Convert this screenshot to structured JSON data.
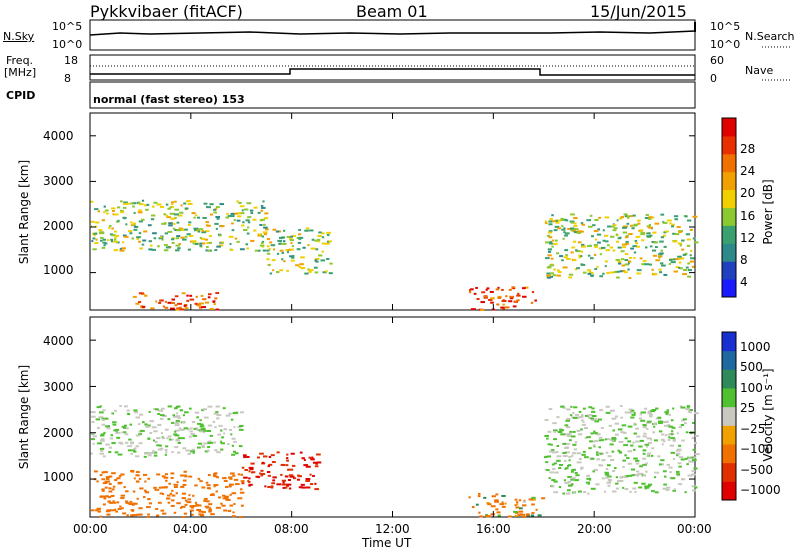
{
  "header": {
    "radar": "Pykkvibaer (fitACF)",
    "beam": "Beam 01",
    "date": "15/Jun/2015"
  },
  "sky_panel": {
    "left_label": "N.Sky",
    "right_label": "N.Search",
    "left_ticks": [
      "10^5",
      "10^0"
    ],
    "right_ticks": [
      "10^5",
      "10^0"
    ]
  },
  "freq_panel": {
    "left_label_line1": "Freq.",
    "left_label_line2": "[MHz]",
    "right_label": "Nave",
    "left_ticks": [
      "18",
      "8"
    ],
    "right_ticks": [
      "60",
      "0"
    ]
  },
  "cpid": {
    "label": "CPID",
    "text": "normal (fast stereo) 153"
  },
  "x_axis": {
    "ticks": [
      "00:00",
      "04:00",
      "08:00",
      "12:00",
      "16:00",
      "20:00",
      "00:00"
    ],
    "label": "Time UT"
  },
  "power_panel": {
    "ylabel": "Slant Range [km]",
    "yticks": [
      "1000",
      "2000",
      "3000",
      "4000"
    ],
    "colorbar_label": "Power [dB]",
    "colorbar_ticks": [
      "4",
      "8",
      "12",
      "16",
      "20",
      "24",
      "28"
    ],
    "colors": [
      "#1a1aff",
      "#2040c0",
      "#2e8a8a",
      "#3aa070",
      "#8bc832",
      "#f0d000",
      "#f0a000",
      "#f07000",
      "#e83000",
      "#e00000"
    ]
  },
  "velocity_panel": {
    "ylabel": "Slant Range [km]",
    "yticks": [
      "1000",
      "2000",
      "3000",
      "4000"
    ],
    "colorbar_label": "Velocity [m s⁻¹]",
    "colorbar_ticks": [
      "1000",
      "500",
      "100",
      "25",
      "−25",
      "−100",
      "−500",
      "−1000"
    ],
    "colors": [
      "#1a2fd0",
      "#1e6aa0",
      "#2e8a5a",
      "#4fc030",
      "#c8c8c0",
      "#f0a000",
      "#f07000",
      "#e03000",
      "#e00000"
    ]
  },
  "chart_data": [
    {
      "type": "heatmap",
      "title": "Power",
      "xlabel": "Time UT",
      "ylabel": "Slant Range [km]",
      "xlim": [
        "00:00",
        "24:00"
      ],
      "ylim": [
        180,
        4500
      ],
      "colorbar": {
        "label": "Power [dB]",
        "range": [
          0,
          30
        ]
      },
      "notable_features": [
        {
          "time_range": [
            "00:00",
            "07:00"
          ],
          "range_km": [
            1500,
            2600
          ],
          "power_db": [
            8,
            20
          ]
        },
        {
          "time_range": [
            "01:30",
            "05:00"
          ],
          "range_km": [
            200,
            600
          ],
          "power_db": [
            18,
            30
          ]
        },
        {
          "time_range": [
            "07:00",
            "09:30"
          ],
          "range_km": [
            1000,
            2000
          ],
          "power_db": [
            8,
            20
          ]
        },
        {
          "time_range": [
            "15:00",
            "17:40"
          ],
          "range_km": [
            200,
            700
          ],
          "power_db": [
            20,
            30
          ]
        },
        {
          "time_range": [
            "18:00",
            "24:00"
          ],
          "range_km": [
            900,
            2300
          ],
          "power_db": [
            8,
            20
          ]
        }
      ]
    },
    {
      "type": "heatmap",
      "title": "Velocity",
      "xlabel": "Time UT",
      "ylabel": "Slant Range [km]",
      "xlim": [
        "00:00",
        "24:00"
      ],
      "ylim": [
        180,
        4500
      ],
      "colorbar": {
        "label": "Velocity [m s⁻¹]",
        "range": [
          -1000,
          1000
        ]
      },
      "notable_features": [
        {
          "time_range": [
            "00:00",
            "06:00"
          ],
          "range_km": [
            1500,
            2600
          ],
          "velocity": [
            -25,
            25
          ]
        },
        {
          "time_range": [
            "06:00",
            "09:00"
          ],
          "range_km": [
            800,
            1600
          ],
          "velocity": [
            -1000,
            -500
          ]
        },
        {
          "time_range": [
            "00:00",
            "06:00"
          ],
          "range_km": [
            200,
            1200
          ],
          "velocity": [
            -500,
            -100
          ]
        },
        {
          "time_range": [
            "15:00",
            "18:00"
          ],
          "range_km": [
            200,
            700
          ],
          "velocity": [
            -500,
            100
          ]
        },
        {
          "time_range": [
            "18:00",
            "24:00"
          ],
          "range_km": [
            700,
            2600
          ],
          "velocity": [
            -25,
            25
          ]
        }
      ]
    }
  ]
}
